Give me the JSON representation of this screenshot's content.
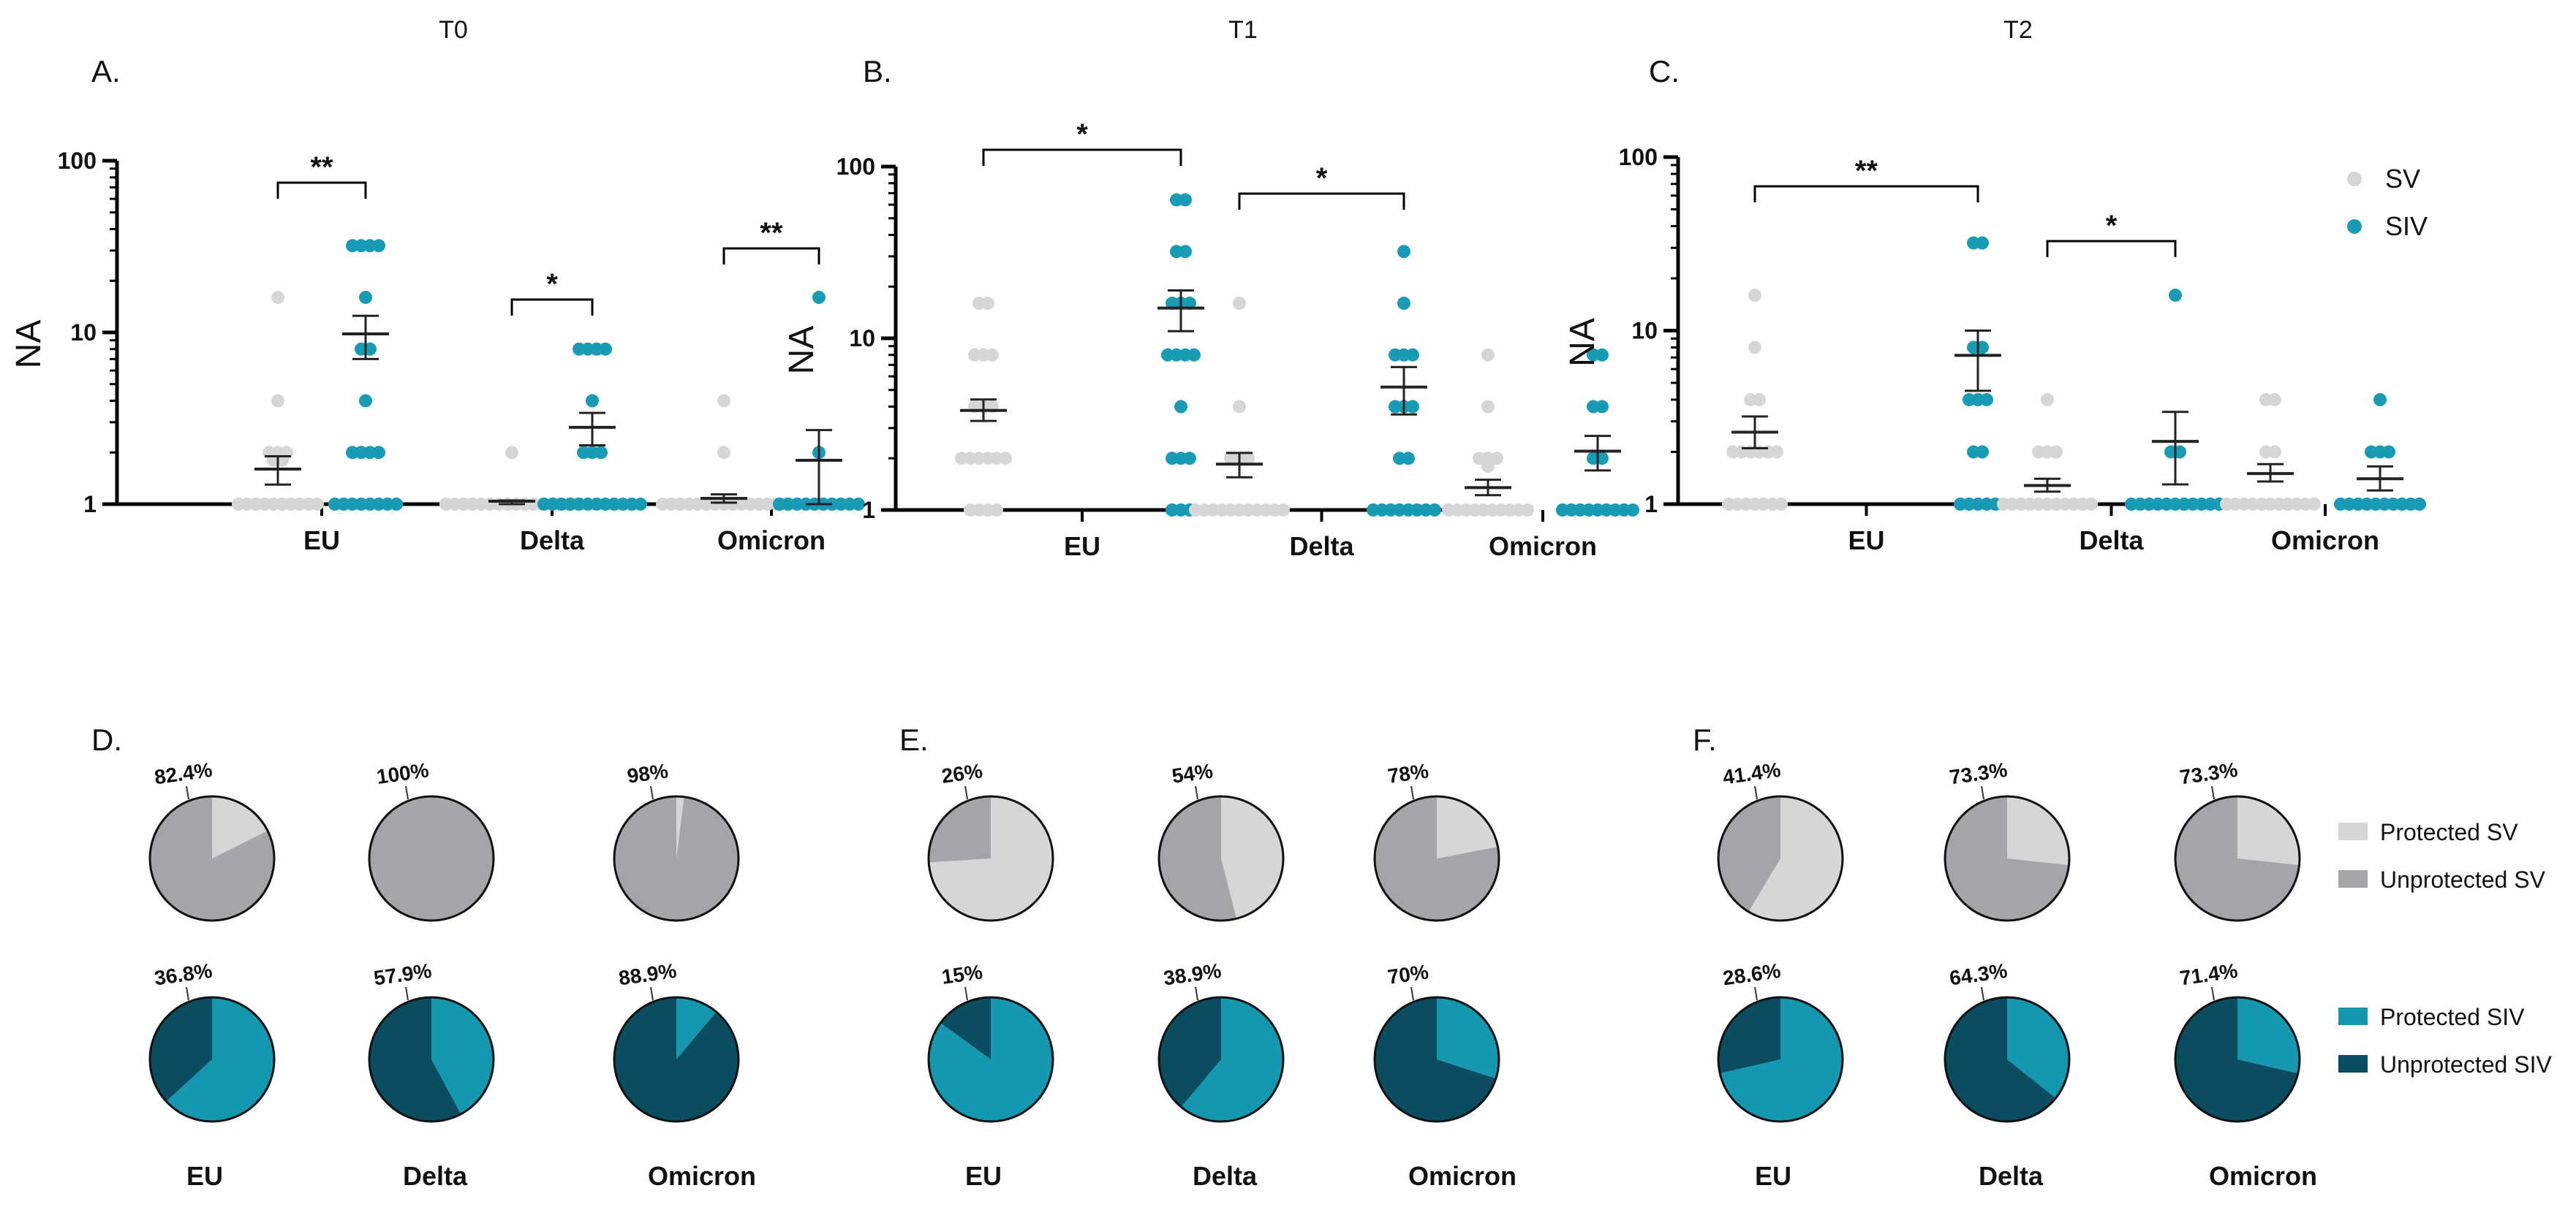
{
  "chart_data": {
    "type": "scatter+pie",
    "colors": {
      "SV": "#d6d6d6",
      "SIV": "#1a9bb5",
      "Protected SV": "#d6d6d6",
      "Unprotected SV": "#a5a5a9",
      "Protected SIV": "#1597b0",
      "Unprotected SIV": "#0a4d60"
    },
    "scatter_legend": [
      "SV",
      "SIV"
    ],
    "pie_legend": [
      "Protected SV",
      "Unprotected SV",
      "Protected SIV",
      "Unprotected SIV"
    ],
    "panels": [
      {
        "letter": "A.",
        "title": "T0",
        "ylabel": "NA",
        "yscale": "log",
        "ylim": [
          1,
          100
        ],
        "yticks": [
          "1",
          "10",
          "100"
        ],
        "categories": [
          "EU",
          "Delta",
          "Omicron"
        ],
        "groups": [
          {
            "category": "EU",
            "sig": "**",
            "SV": {
              "mean": 1.6,
              "sem_lo": 1.3,
              "sem_hi": 1.9,
              "points": [
                16,
                4,
                2,
                2,
                2,
                1.8,
                1.8,
                1,
                1,
                1,
                1,
                1,
                1,
                1,
                1,
                1,
                1
              ]
            },
            "SIV": {
              "mean": 9.8,
              "sem_lo": 7.0,
              "sem_hi": 12.5,
              "points": [
                32,
                32,
                32,
                32,
                16,
                8,
                8,
                4,
                2,
                2,
                2,
                2,
                1,
                1,
                1,
                1,
                1,
                1,
                1,
                1
              ]
            }
          },
          {
            "category": "Delta",
            "sig": "*",
            "SV": {
              "mean": 1.04,
              "sem_lo": 1.0,
              "sem_hi": 1.05,
              "points": [
                2,
                1,
                1,
                1,
                1,
                1,
                1,
                1,
                1,
                1,
                1,
                1,
                1,
                1,
                1,
                1,
                1
              ]
            },
            "SIV": {
              "mean": 2.8,
              "sem_lo": 2.2,
              "sem_hi": 3.4,
              "points": [
                8,
                8,
                8,
                8,
                4,
                2,
                2,
                2,
                1,
                1,
                1,
                1,
                1,
                1,
                1,
                1,
                1,
                1,
                1,
                1
              ]
            }
          },
          {
            "category": "Omicron",
            "sig": "**",
            "SV": {
              "mean": 1.08,
              "sem_lo": 1.02,
              "sem_hi": 1.14,
              "points": [
                4,
                2,
                1,
                1,
                1,
                1,
                1,
                1,
                1,
                1,
                1,
                1,
                1,
                1,
                1,
                1,
                1
              ]
            },
            "SIV": {
              "mean": 1.8,
              "sem_lo": 1.0,
              "sem_hi": 2.7,
              "points": [
                16,
                2,
                1,
                1,
                1,
                1,
                1,
                1,
                1,
                1,
                1,
                1
              ]
            }
          }
        ]
      },
      {
        "letter": "B.",
        "title": "T1",
        "ylabel": "NA",
        "yscale": "log",
        "ylim": [
          1,
          100
        ],
        "yticks": [
          "1",
          "10",
          "100"
        ],
        "categories": [
          "EU",
          "Delta",
          "Omicron"
        ],
        "groups": [
          {
            "category": "EU",
            "sig": "*",
            "SV": {
              "mean": 3.8,
              "sem_lo": 3.3,
              "sem_hi": 4.4,
              "points": [
                16,
                16,
                8,
                8,
                8,
                4,
                4,
                4,
                2,
                2,
                2,
                2,
                2,
                2,
                1,
                1,
                1,
                1
              ]
            },
            "SIV": {
              "mean": 15,
              "sem_lo": 11,
              "sem_hi": 19,
              "points": [
                64,
                64,
                32,
                32,
                16,
                16,
                16,
                8,
                8,
                8,
                8,
                4,
                2,
                2,
                2,
                1,
                1,
                1
              ]
            }
          },
          {
            "category": "Delta",
            "sig": "*",
            "SV": {
              "mean": 1.85,
              "sem_lo": 1.55,
              "sem_hi": 2.15,
              "points": [
                16,
                4,
                2,
                2,
                2,
                1,
                1,
                1,
                1,
                1,
                1,
                1,
                1,
                1,
                1,
                1
              ]
            },
            "SIV": {
              "mean": 5.2,
              "sem_lo": 3.6,
              "sem_hi": 6.8,
              "points": [
                32,
                16,
                8,
                8,
                8,
                4,
                4,
                4,
                2,
                2,
                1,
                1,
                1,
                1,
                1,
                1,
                1,
                1
              ]
            }
          },
          {
            "category": "Omicron",
            "sig": "",
            "SV": {
              "mean": 1.35,
              "sem_lo": 1.22,
              "sem_hi": 1.5,
              "points": [
                8,
                4,
                2,
                2,
                2,
                1.8,
                1,
                1,
                1,
                1,
                1,
                1,
                1,
                1,
                1,
                1
              ]
            },
            "SIV": {
              "mean": 2.2,
              "sem_lo": 1.7,
              "sem_hi": 2.7,
              "points": [
                8,
                8,
                4,
                4,
                2,
                2,
                1,
                1,
                1,
                1,
                1,
                1,
                1,
                1,
                1
              ]
            }
          }
        ]
      },
      {
        "letter": "C.",
        "title": "T2",
        "ylabel": "NA",
        "yscale": "log",
        "ylim": [
          1,
          100
        ],
        "yticks": [
          "1",
          "10",
          "100"
        ],
        "categories": [
          "EU",
          "Delta",
          "Omicron"
        ],
        "groups": [
          {
            "category": "EU",
            "sig": "**",
            "SV": {
              "mean": 2.6,
              "sem_lo": 2.1,
              "sem_hi": 3.2,
              "points": [
                16,
                8,
                4,
                4,
                2,
                2,
                2,
                2,
                2,
                2,
                1,
                1,
                1,
                1,
                1,
                1,
                1
              ]
            },
            "SIV": {
              "mean": 7.2,
              "sem_lo": 4.5,
              "sem_hi": 10,
              "points": [
                32,
                32,
                8,
                8,
                4,
                4,
                4,
                2,
                2,
                1,
                1,
                1,
                1,
                1
              ]
            }
          },
          {
            "category": "Delta",
            "sig": "*",
            "SV": {
              "mean": 1.28,
              "sem_lo": 1.18,
              "sem_hi": 1.4,
              "points": [
                4,
                2,
                2,
                2,
                1,
                1,
                1,
                1,
                1,
                1,
                1,
                1,
                1,
                1,
                1
              ]
            },
            "SIV": {
              "mean": 2.3,
              "sem_lo": 1.3,
              "sem_hi": 3.4,
              "points": [
                16,
                2,
                2,
                1,
                1,
                1,
                1,
                1,
                1,
                1,
                1,
                1,
                1,
                1
              ]
            }
          },
          {
            "category": "Omicron",
            "sig": "",
            "SV": {
              "mean": 1.5,
              "sem_lo": 1.35,
              "sem_hi": 1.7,
              "points": [
                4,
                4,
                2,
                2,
                1,
                1,
                1,
                1,
                1,
                1,
                1,
                1,
                1,
                1,
                1
              ]
            },
            "SIV": {
              "mean": 1.4,
              "sem_lo": 1.2,
              "sem_hi": 1.65,
              "points": [
                4,
                2,
                2,
                2,
                1,
                1,
                1,
                1,
                1,
                1,
                1,
                1,
                1,
                1
              ]
            }
          }
        ]
      }
    ],
    "pie_panels": [
      {
        "letter": "D.",
        "categories": [
          "EU",
          "Delta",
          "Omicron"
        ],
        "SV_protected_pct": [
          17.6,
          0,
          2
        ],
        "SV_labels": [
          "82.4%",
          "100%",
          "98%"
        ],
        "SIV_protected_pct": [
          63.2,
          42.1,
          11.1
        ],
        "SIV_labels": [
          "36.8%",
          "57.9%",
          "88.9%"
        ]
      },
      {
        "letter": "E.",
        "categories": [
          "EU",
          "Delta",
          "Omicron"
        ],
        "SV_protected_pct": [
          74,
          46,
          22
        ],
        "SV_labels": [
          "26%",
          "54%",
          "78%"
        ],
        "SIV_protected_pct": [
          85,
          61.1,
          30
        ],
        "SIV_labels": [
          "15%",
          "38.9%",
          "70%"
        ]
      },
      {
        "letter": "F.",
        "categories": [
          "EU",
          "Delta",
          "Omicron"
        ],
        "SV_protected_pct": [
          58.6,
          26.7,
          26.7
        ],
        "SV_labels": [
          "41.4%",
          "73.3%",
          "73.3%"
        ],
        "SIV_protected_pct": [
          71.4,
          35.7,
          28.6
        ],
        "SIV_labels": [
          "28.6%",
          "64.3%",
          "71.4%"
        ]
      }
    ]
  }
}
